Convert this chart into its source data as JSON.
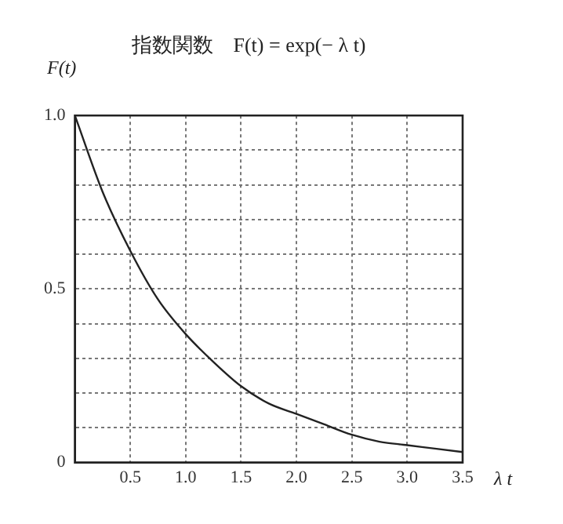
{
  "chart_data": {
    "type": "line",
    "title": "指数関数　F(t) = exp(− λ t)",
    "xlabel": "λ t",
    "ylabel": "F(t)",
    "x": [
      0,
      0.25,
      0.5,
      0.75,
      1,
      1.25,
      1.5,
      1.75,
      2,
      2.25,
      2.5,
      2.75,
      3,
      3.25,
      3.5
    ],
    "series": [
      {
        "color": "#222222",
        "values": [
          1,
          0.78,
          0.61,
          0.47,
          0.37,
          0.29,
          0.22,
          0.17,
          0.14,
          0.11,
          0.08,
          0.06,
          0.05,
          0.04,
          0.03
        ]
      }
    ],
    "xlim": [
      0,
      3.5
    ],
    "xticks": [
      {
        "value": 0,
        "label": null
      },
      0.5,
      {
        "value": 1,
        "label": "1.0"
      },
      1.5,
      {
        "value": 2,
        "label": "2.0"
      },
      2.5,
      {
        "value": 3,
        "label": "3.0"
      },
      3.5
    ],
    "ylim": [
      0,
      1
    ],
    "yticks": [
      0,
      {
        "value": 0.1,
        "label": null
      },
      {
        "value": 0.2,
        "label": null
      },
      {
        "value": 0.3,
        "label": null
      },
      {
        "value": 0.4,
        "label": null
      },
      0.5,
      {
        "value": 0.6,
        "label": null
      },
      {
        "value": 0.7,
        "label": null
      },
      {
        "value": 0.8,
        "label": null
      },
      {
        "value": 0.9,
        "label": null
      },
      {
        "value": 1,
        "label": "1.0"
      }
    ],
    "grid": true,
    "marker": "none",
    "line_style": "solid",
    "legend": false
  }
}
